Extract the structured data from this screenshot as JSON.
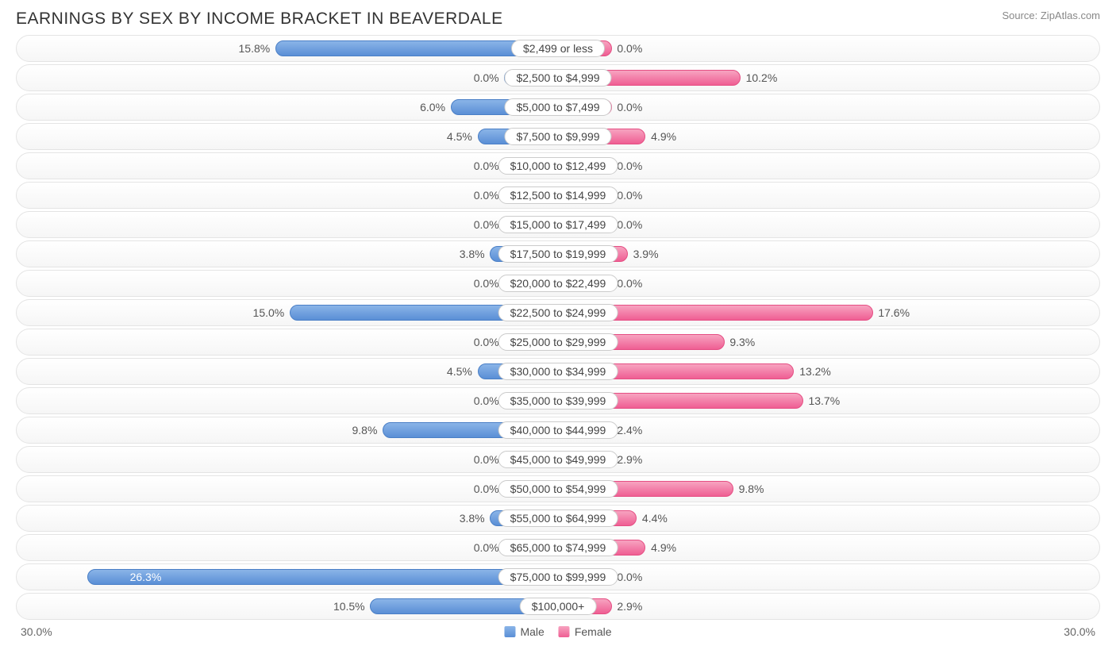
{
  "title": "EARNINGS BY SEX BY INCOME BRACKET IN BEAVERDALE",
  "source": "Source: ZipAtlas.com",
  "axis_max": 30.0,
  "axis_label_left": "30.0%",
  "axis_label_right": "30.0%",
  "min_bar_pct": 3.0,
  "colors": {
    "male_top": "#8ab4e8",
    "male_bottom": "#5a8fd6",
    "male_border": "#4a7fc6",
    "female_top": "#f7a3c0",
    "female_bottom": "#ef5e93",
    "female_border": "#e54e83",
    "row_border": "#e4e4e4",
    "label_bg": "#ffffff",
    "label_border": "#cccccc",
    "text": "#555555"
  },
  "legend": {
    "male": "Male",
    "female": "Female"
  },
  "rows": [
    {
      "label": "$2,499 or less",
      "male": 15.8,
      "female": 0.0
    },
    {
      "label": "$2,500 to $4,999",
      "male": 0.0,
      "female": 10.2
    },
    {
      "label": "$5,000 to $7,499",
      "male": 6.0,
      "female": 0.0
    },
    {
      "label": "$7,500 to $9,999",
      "male": 4.5,
      "female": 4.9
    },
    {
      "label": "$10,000 to $12,499",
      "male": 0.0,
      "female": 0.0
    },
    {
      "label": "$12,500 to $14,999",
      "male": 0.0,
      "female": 0.0
    },
    {
      "label": "$15,000 to $17,499",
      "male": 0.0,
      "female": 0.0
    },
    {
      "label": "$17,500 to $19,999",
      "male": 3.8,
      "female": 3.9
    },
    {
      "label": "$20,000 to $22,499",
      "male": 0.0,
      "female": 0.0
    },
    {
      "label": "$22,500 to $24,999",
      "male": 15.0,
      "female": 17.6
    },
    {
      "label": "$25,000 to $29,999",
      "male": 0.0,
      "female": 9.3
    },
    {
      "label": "$30,000 to $34,999",
      "male": 4.5,
      "female": 13.2
    },
    {
      "label": "$35,000 to $39,999",
      "male": 0.0,
      "female": 13.7
    },
    {
      "label": "$40,000 to $44,999",
      "male": 9.8,
      "female": 2.4
    },
    {
      "label": "$45,000 to $49,999",
      "male": 0.0,
      "female": 2.9
    },
    {
      "label": "$50,000 to $54,999",
      "male": 0.0,
      "female": 9.8
    },
    {
      "label": "$55,000 to $64,999",
      "male": 3.8,
      "female": 4.4
    },
    {
      "label": "$65,000 to $74,999",
      "male": 0.0,
      "female": 4.9
    },
    {
      "label": "$75,000 to $99,999",
      "male": 26.3,
      "female": 0.0
    },
    {
      "label": "$100,000+",
      "male": 10.5,
      "female": 2.9
    }
  ]
}
